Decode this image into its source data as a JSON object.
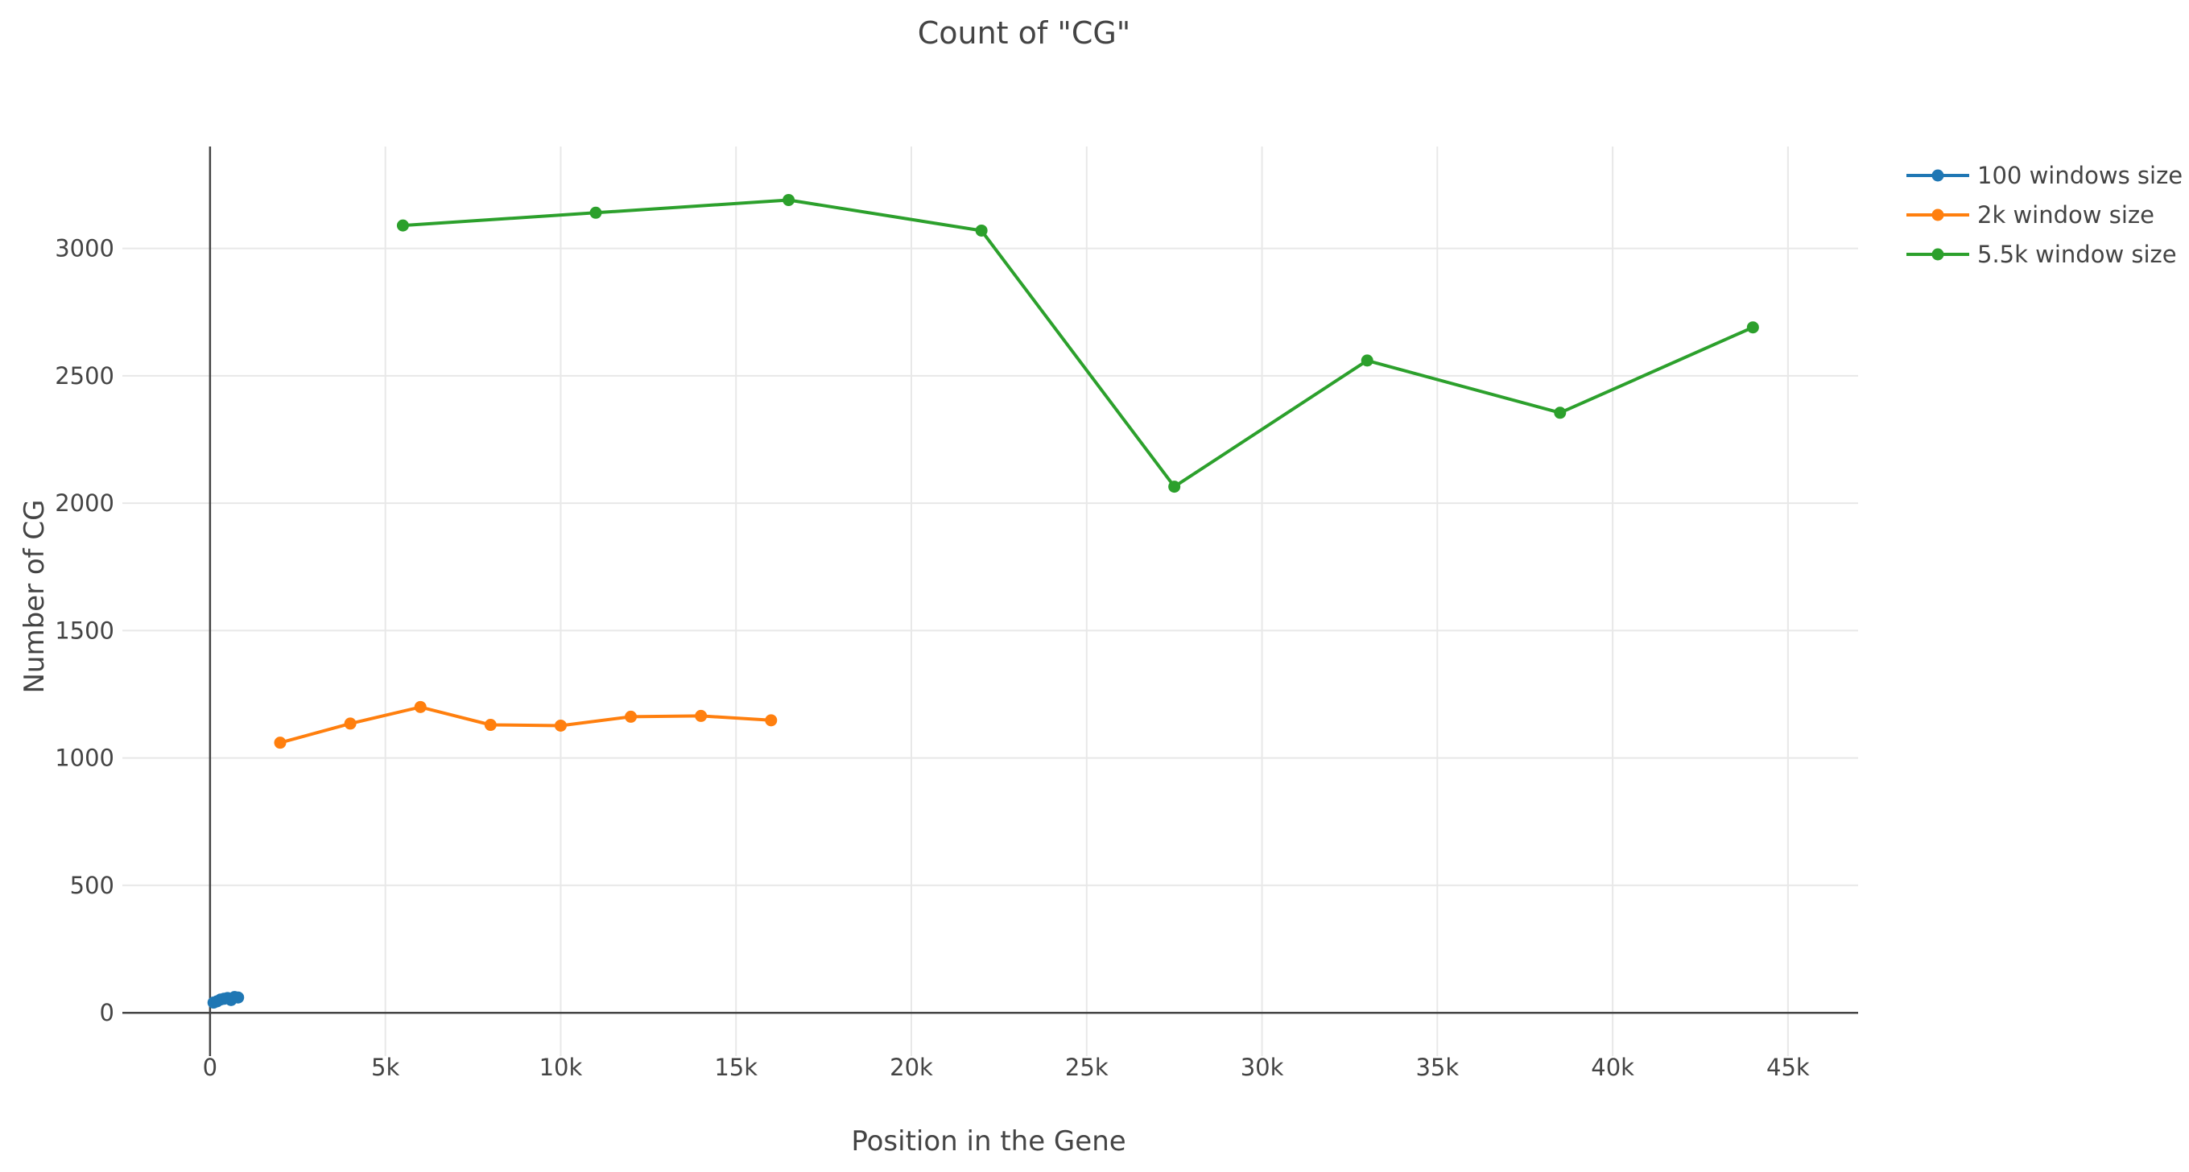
{
  "chart_data": {
    "type": "line",
    "title": "Count of \"CG\"",
    "xlabel": "Position in the Gene",
    "ylabel": "Number of CG",
    "xlim": [
      -2500,
      47000
    ],
    "ylim": [
      -170,
      3400
    ],
    "x_ticks": [
      0,
      5000,
      10000,
      15000,
      20000,
      25000,
      30000,
      35000,
      40000,
      45000
    ],
    "x_tick_labels": [
      "0",
      "5k",
      "10k",
      "15k",
      "20k",
      "25k",
      "30k",
      "35k",
      "40k",
      "45k"
    ],
    "y_ticks": [
      0,
      500,
      1000,
      1500,
      2000,
      2500,
      3000
    ],
    "y_tick_labels": [
      "0",
      "500",
      "1000",
      "1500",
      "2000",
      "2500",
      "3000"
    ],
    "grid": true,
    "legend_position": "top-right",
    "series": [
      {
        "name": "100 windows size",
        "color": "#1f77b4",
        "x": [
          100,
          200,
          300,
          400,
          500,
          600,
          700,
          800
        ],
        "y": [
          40,
          45,
          52,
          55,
          58,
          50,
          62,
          60
        ]
      },
      {
        "name": "2k window size",
        "color": "#ff7f0e",
        "x": [
          2000,
          4000,
          6000,
          8000,
          10000,
          12000,
          14000,
          16000
        ],
        "y": [
          1060,
          1135,
          1200,
          1130,
          1127,
          1162,
          1165,
          1148
        ]
      },
      {
        "name": "5.5k window size",
        "color": "#2ca02c",
        "x": [
          5500,
          11000,
          16500,
          22000,
          27500,
          33000,
          38500,
          44000
        ],
        "y": [
          3090,
          3140,
          3190,
          3070,
          2065,
          2560,
          2355,
          2690
        ]
      }
    ]
  }
}
